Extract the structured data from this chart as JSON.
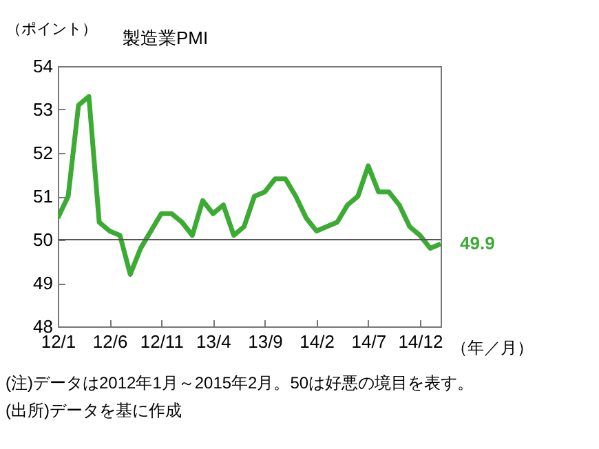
{
  "chart_data": {
    "type": "line",
    "title": "製造業PMI",
    "ylabel": "（ポイント）",
    "xlabel": "（年／月）",
    "categories": [
      "12/1",
      null,
      null,
      null,
      null,
      "12/6",
      null,
      null,
      null,
      null,
      "12/11",
      null,
      null,
      null,
      null,
      "13/4",
      null,
      null,
      null,
      null,
      "13/9",
      null,
      null,
      null,
      null,
      "14/2",
      null,
      null,
      null,
      null,
      "14/7",
      null,
      null,
      null,
      null,
      "14/12",
      null,
      null
    ],
    "series": [
      {
        "color": "#3cab34",
        "values": [
          50.5,
          51.0,
          53.1,
          53.3,
          50.4,
          50.2,
          50.1,
          49.2,
          49.8,
          50.2,
          50.6,
          50.6,
          50.4,
          50.1,
          50.9,
          50.6,
          50.8,
          50.1,
          50.3,
          51.0,
          51.1,
          51.4,
          51.4,
          51.0,
          50.5,
          50.2,
          50.3,
          50.4,
          50.8,
          51.0,
          51.7,
          51.1,
          51.1,
          50.8,
          50.3,
          50.1,
          49.8,
          49.9
        ],
        "value_labels": [
          null,
          null,
          null,
          null,
          null,
          null,
          null,
          null,
          null,
          null,
          null,
          null,
          null,
          null,
          null,
          null,
          null,
          null,
          null,
          null,
          null,
          null,
          null,
          null,
          null,
          null,
          null,
          null,
          null,
          null,
          null,
          null,
          null,
          null,
          null,
          null,
          null,
          "49.9"
        ]
      }
    ],
    "ylim": [
      48,
      54
    ],
    "yticks": [
      48,
      49,
      50,
      51,
      52,
      53,
      54
    ],
    "ref_lines": [
      {
        "axis": "y",
        "value": 50,
        "color": "#555555"
      }
    ],
    "grid": false,
    "legend": false,
    "marker": "none",
    "line_style": "solid",
    "annotations": [
      "(注)データは2012年1月～2015年2月。50は好悪の境目を表す。",
      "(出所)データを基に作成"
    ]
  }
}
